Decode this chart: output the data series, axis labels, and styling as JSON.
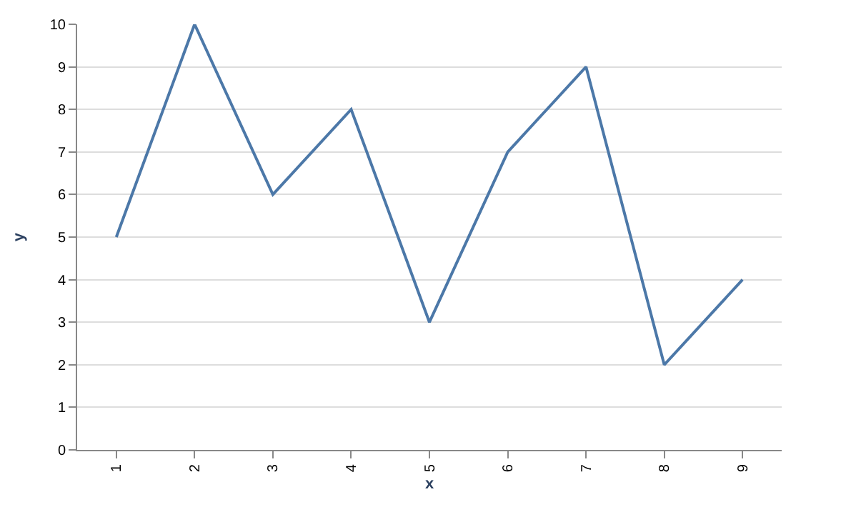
{
  "chart_data": {
    "type": "line",
    "xlabel": "x",
    "ylabel": "y",
    "categories": [
      "1",
      "2",
      "3",
      "4",
      "5",
      "6",
      "7",
      "8",
      "9"
    ],
    "series": [
      {
        "color": "#4c78a8",
        "values": [
          5,
          10,
          6,
          8,
          3,
          7,
          9,
          2,
          4
        ]
      }
    ],
    "ylim": [
      0,
      10
    ],
    "yticks": [
      0,
      1,
      2,
      3,
      4,
      5,
      6,
      7,
      8,
      9,
      10
    ],
    "grid": "y",
    "marker": "none",
    "line_style": "solid"
  }
}
